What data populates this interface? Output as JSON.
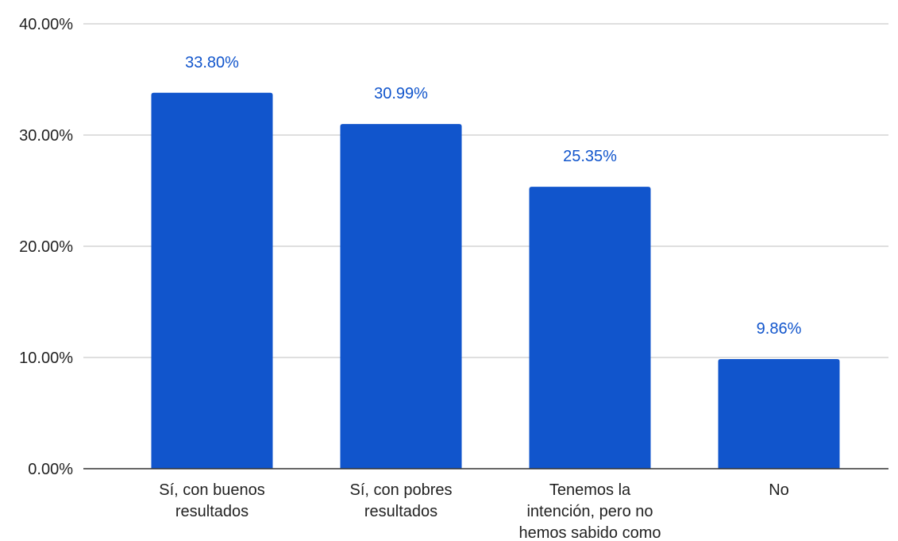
{
  "chart_data": {
    "type": "bar",
    "categories": [
      [
        "Sí, con buenos",
        "resultados"
      ],
      [
        "Sí, con pobres",
        "resultados"
      ],
      [
        "Tenemos la",
        "intención, pero no",
        "hemos sabido como"
      ],
      [
        "No"
      ]
    ],
    "values": [
      33.8,
      30.99,
      25.35,
      9.86
    ],
    "data_labels": [
      "33.80%",
      "30.99%",
      "25.35%",
      "9.86%"
    ],
    "y_ticks": [
      0,
      10,
      20,
      30,
      40
    ],
    "y_tick_labels": [
      "0.00%",
      "10.00%",
      "20.00%",
      "30.00%",
      "40.00%"
    ],
    "ylim": [
      0,
      40
    ],
    "grid": true,
    "legend": "none",
    "bar_color": "#1155cc",
    "label_color": "#1155cc"
  }
}
